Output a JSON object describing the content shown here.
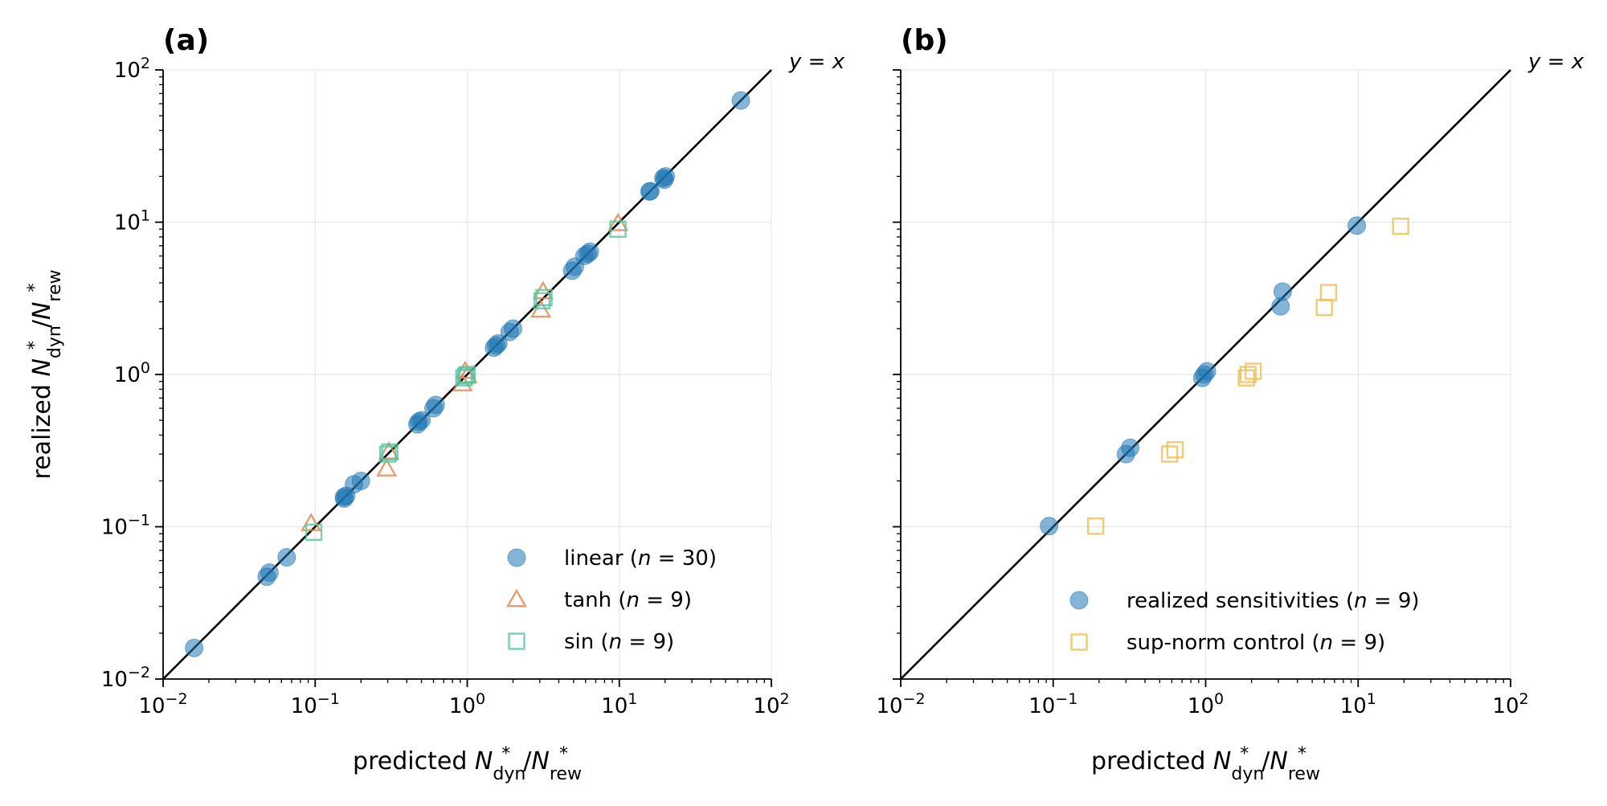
{
  "chart_data": [
    {
      "panel": "(a)",
      "type": "scatter",
      "xscale": "log",
      "yscale": "log",
      "xlim": [
        0.01,
        100
      ],
      "ylim": [
        0.01,
        100
      ],
      "xlabel": "predicted N*dyn/N*rew",
      "ylabel": "realized N*dyn/N*rew",
      "reference_line_label": "y = x",
      "grid": true,
      "legend_position": "lower-right",
      "series": [
        {
          "name": "linear (n = 30)",
          "marker": "circle",
          "color": "#1f77b4",
          "points": [
            [
              0.016,
              0.016
            ],
            [
              0.048,
              0.047
            ],
            [
              0.05,
              0.05
            ],
            [
              0.065,
              0.063
            ],
            [
              0.155,
              0.153
            ],
            [
              0.16,
              0.16
            ],
            [
              0.18,
              0.19
            ],
            [
              0.2,
              0.2
            ],
            [
              0.47,
              0.47
            ],
            [
              0.5,
              0.5
            ],
            [
              0.48,
              0.49
            ],
            [
              0.6,
              0.6
            ],
            [
              0.62,
              0.63
            ],
            [
              1.5,
              1.5
            ],
            [
              1.55,
              1.55
            ],
            [
              1.6,
              1.6
            ],
            [
              1.9,
              1.9
            ],
            [
              2.0,
              2.0
            ],
            [
              4.9,
              4.8
            ],
            [
              5.1,
              5.1
            ],
            [
              5.9,
              6.0
            ],
            [
              6.2,
              6.2
            ],
            [
              6.4,
              6.4
            ],
            [
              15.8,
              15.9
            ],
            [
              19.8,
              19.0
            ],
            [
              20.2,
              20.0
            ],
            [
              19.5,
              19.5
            ],
            [
              16.0,
              16.0
            ],
            [
              63.0,
              63.0
            ],
            [
              0.155,
              0.157
            ]
          ]
        },
        {
          "name": "tanh (n = 9)",
          "marker": "triangle",
          "color": "#dd8452",
          "points": [
            [
              0.094,
              0.105
            ],
            [
              0.295,
              0.24
            ],
            [
              0.305,
              0.31
            ],
            [
              0.93,
              0.87
            ],
            [
              0.97,
              1.05
            ],
            [
              1.0,
              0.98
            ],
            [
              3.05,
              2.65
            ],
            [
              3.15,
              3.5
            ],
            [
              9.8,
              9.8
            ]
          ]
        },
        {
          "name": "sin (n = 9)",
          "marker": "square",
          "color": "#55c4a0",
          "points": [
            [
              0.098,
              0.092
            ],
            [
              0.3,
              0.3
            ],
            [
              0.31,
              0.31
            ],
            [
              0.95,
              0.95
            ],
            [
              0.98,
              0.98
            ],
            [
              1.0,
              1.0
            ],
            [
              3.1,
              3.05
            ],
            [
              3.2,
              3.2
            ],
            [
              9.8,
              9.0
            ]
          ]
        }
      ]
    },
    {
      "panel": "(b)",
      "type": "scatter",
      "xscale": "log",
      "yscale": "log",
      "xlim": [
        0.01,
        100
      ],
      "ylim": [
        0.01,
        100
      ],
      "xlabel": "predicted N*dyn/N*rew",
      "reference_line_label": "y = x",
      "grid": true,
      "legend_position": "lower-right",
      "series": [
        {
          "name": "realized sensitivities (n = 9)",
          "marker": "circle",
          "color": "#1f77b4",
          "points": [
            [
              0.094,
              0.101
            ],
            [
              0.3,
              0.3
            ],
            [
              0.32,
              0.33
            ],
            [
              0.95,
              0.95
            ],
            [
              0.98,
              1.0
            ],
            [
              1.02,
              1.05
            ],
            [
              3.1,
              2.8
            ],
            [
              3.2,
              3.5
            ],
            [
              9.8,
              9.5
            ]
          ]
        },
        {
          "name": "sup-norm control (n = 9)",
          "marker": "square",
          "color": "#eebd55",
          "points": [
            [
              0.19,
              0.101
            ],
            [
              0.58,
              0.3
            ],
            [
              0.63,
              0.32
            ],
            [
              1.85,
              0.95
            ],
            [
              1.9,
              1.0
            ],
            [
              2.05,
              1.05
            ],
            [
              6.0,
              2.75
            ],
            [
              6.4,
              3.45
            ],
            [
              19.0,
              9.4
            ]
          ]
        }
      ]
    }
  ],
  "tick_labels": {
    "x": [
      "10",
      "10",
      "10",
      "10",
      "10"
    ],
    "x_exp": [
      "−2",
      "−1",
      "0",
      "1",
      "2"
    ],
    "y": [
      "10",
      "10",
      "10",
      "10",
      "10"
    ],
    "y_exp": [
      "−2",
      "−1",
      "0",
      "1",
      "2"
    ]
  },
  "labels": {
    "panel_a": "(a)",
    "panel_b": "(b)",
    "x_prefix": "predicted ",
    "y_prefix": "realized ",
    "N": "N",
    "star": "*",
    "dyn": "dyn",
    "rew": "rew",
    "slash": "/",
    "yx": "y = x"
  },
  "legend_a": [
    {
      "text_pre": "linear (",
      "n": "n",
      "text_post": " = 30)"
    },
    {
      "text_pre": "tanh  (",
      "n": "n",
      "text_post": " = 9)"
    },
    {
      "text_pre": "sin  (",
      "n": "n",
      "text_post": " = 9)"
    }
  ],
  "legend_b": [
    {
      "text_pre": "realized sensitivities (",
      "n": "n",
      "text_post": " = 9)"
    },
    {
      "text_pre": "sup-norm control (",
      "n": "n",
      "text_post": " = 9)"
    }
  ]
}
